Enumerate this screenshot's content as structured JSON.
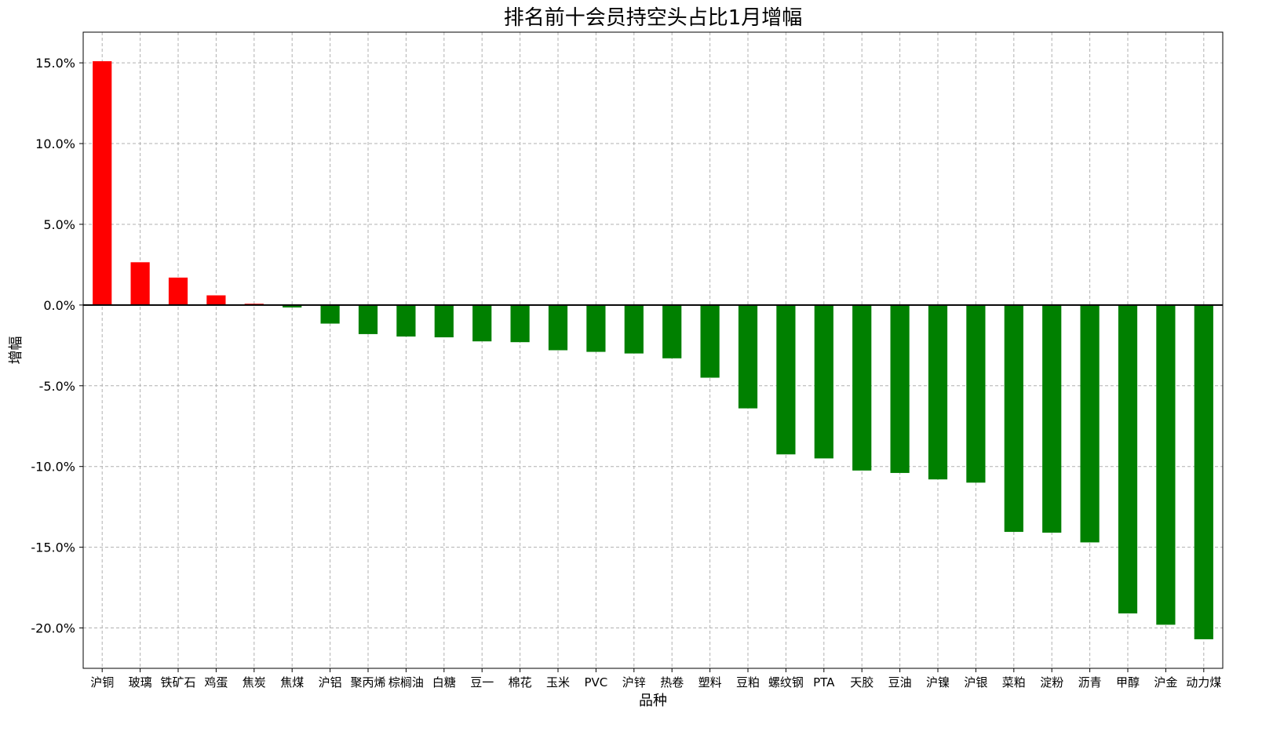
{
  "chart_data": {
    "type": "bar",
    "title": "排名前十会员持空头占比1月增幅",
    "xlabel": "品种",
    "ylabel": "增幅",
    "ylim": [
      -22.5,
      16.9
    ],
    "yticks": [
      15,
      10,
      5,
      0,
      -5,
      -10,
      -15,
      -20
    ],
    "ytick_labels": [
      "15.0%",
      "10.0%",
      "5.0%",
      "0.0%",
      "-5.0%",
      "-10.0%",
      "-15.0%",
      "-20.0%"
    ],
    "grid": true,
    "colors": {
      "positive": "#ff0000",
      "negative": "#008000",
      "grid": "#b0b0b0",
      "zero_line": "#000000"
    },
    "categories": [
      "沪铜",
      "玻璃",
      "铁矿石",
      "鸡蛋",
      "焦炭",
      "焦煤",
      "沪铝",
      "聚丙烯",
      "棕榈油",
      "白糖",
      "豆一",
      "棉花",
      "玉米",
      "PVC",
      "沪锌",
      "热卷",
      "塑料",
      "豆粕",
      "螺纹钢",
      "PTA",
      "天胶",
      "豆油",
      "沪镍",
      "沪银",
      "菜粕",
      "淀粉",
      "沥青",
      "甲醇",
      "沪金",
      "动力煤"
    ],
    "values": [
      15.1,
      2.65,
      1.7,
      0.6,
      0.08,
      -0.15,
      -1.15,
      -1.8,
      -1.95,
      -2.0,
      -2.25,
      -2.3,
      -2.8,
      -2.9,
      -3.0,
      -3.3,
      -4.5,
      -6.4,
      -9.25,
      -9.5,
      -10.25,
      -10.4,
      -10.8,
      -11.0,
      -14.05,
      -14.1,
      -14.7,
      -19.1,
      -19.8,
      -20.7
    ]
  }
}
